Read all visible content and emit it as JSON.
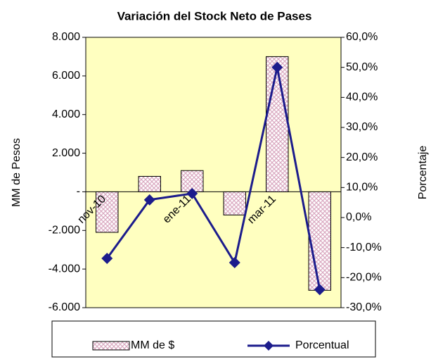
{
  "chart_data": {
    "type": "bar-line",
    "title": "Variación del Stock Neto de Pases",
    "y_label": "MM de Pesos",
    "y2_label": "Porcentaje",
    "categories": [
      "nov-10",
      null,
      "ene-11",
      null,
      "mar-11",
      null
    ],
    "series": [
      {
        "name": "MM de $",
        "type": "bar",
        "color": "#d9a8c0",
        "values": [
          -2100,
          800,
          1100,
          -1200,
          7000,
          -5100
        ]
      },
      {
        "name": "Porcentual",
        "type": "line",
        "axis": "y2",
        "color": "#1c1c8c",
        "values": [
          -13.6,
          5.9,
          8,
          -15,
          50,
          -24
        ]
      }
    ],
    "ylim": [
      -6000,
      8000
    ],
    "yticks": [
      {
        "value": -6000,
        "label": "-6.000"
      },
      {
        "value": -4000,
        "label": "-4.000"
      },
      {
        "value": -2000,
        "label": "-2.000"
      },
      {
        "value": 0,
        "label": "-"
      },
      {
        "value": 2000,
        "label": "2.000"
      },
      {
        "value": 4000,
        "label": "4.000"
      },
      {
        "value": 6000,
        "label": "6.000"
      },
      {
        "value": 8000,
        "label": "8.000"
      }
    ],
    "y2lim": [
      -30,
      60
    ],
    "y2ticks": [
      {
        "value": -30,
        "label": "-30,0%"
      },
      {
        "value": -20,
        "label": "-20,0%"
      },
      {
        "value": -10,
        "label": "-10,0%"
      },
      {
        "value": 0,
        "label": "0,0%"
      },
      {
        "value": 10,
        "label": "10,0%"
      },
      {
        "value": 20,
        "label": "20,0%"
      },
      {
        "value": 30,
        "label": "30,0%"
      },
      {
        "value": 40,
        "label": "40,0%"
      },
      {
        "value": 50,
        "label": "50,0%"
      },
      {
        "value": 60,
        "label": "60,0%"
      }
    ],
    "plot_background": "#ffffc0"
  }
}
